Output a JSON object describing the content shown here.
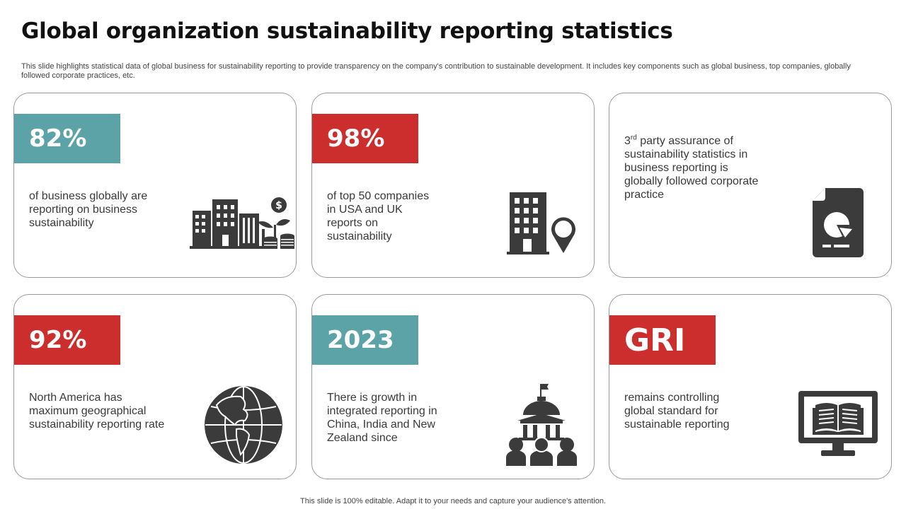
{
  "title": "Global organization sustainability reporting statistics",
  "subtitle": "This slide highlights statistical data of global business for sustainability reporting to provide transparency on the company's contribution to sustainable development. It includes key components such as global business, top companies, globally followed corporate practices, etc.",
  "colors": {
    "teal": "#5ba3a7",
    "red": "#cc2e2e",
    "icon": "#3b3b3b",
    "border": "#9a9a9a"
  },
  "cards": [
    {
      "badge": "82%",
      "text": "of business globally are reporting on business sustainability",
      "icon": "buildings-money-icon"
    },
    {
      "badge": "98%",
      "text": "of top 50 companies in  USA and UK reports on sustainability",
      "icon": "building-location-icon"
    },
    {
      "text_sup": "rd",
      "text_prefix": "3",
      "text": " party assurance of sustainability statistics in business reporting is globally followed corporate practice",
      "icon": "report-chart-icon"
    },
    {
      "badge": "92%",
      "text": "North America has maximum geographical sustainability reporting rate",
      "icon": "globe-icon"
    },
    {
      "badge": "2023",
      "text": "There is growth in integrated reporting in China, India and New Zealand since",
      "icon": "government-people-icon"
    },
    {
      "badge": "GRI",
      "text": "remains controlling global standard for sustainable reporting",
      "icon": "monitor-book-icon"
    }
  ],
  "footer": "This slide is 100% editable.  Adapt it to your needs and capture your audience's attention."
}
